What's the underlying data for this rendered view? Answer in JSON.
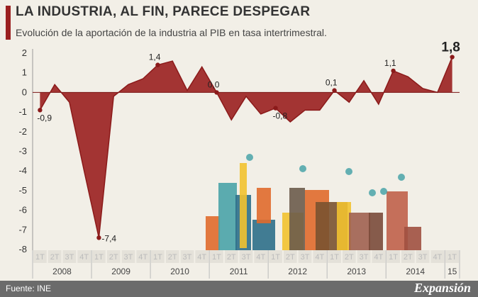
{
  "header": {
    "title": "LA INDUSTRIA, AL FIN, PARECE DESPEGAR",
    "subtitle": "Evolución de la aportación de la industria al PIB en tasa intertrimestral."
  },
  "footer": {
    "source": "Fuente: INE",
    "brand": "Expansión"
  },
  "colors": {
    "area": "#9a1f1f",
    "line": "#8b1a1a",
    "quarter_label": "#bbbbbb",
    "year_label": "#444444"
  },
  "chart_data": {
    "type": "area",
    "title": "LA INDUSTRIA, AL FIN, PARECE DESPEGAR",
    "subtitle": "Evolución de la aportación de la industria al PIB en tasa intertrimestral.",
    "ylim": [
      -8,
      2
    ],
    "yticks": [
      "2",
      "1",
      "0",
      "-1",
      "-2",
      "-3",
      "-4",
      "-5",
      "-6",
      "-7",
      "-8"
    ],
    "grid": false,
    "quarters": [
      "1T",
      "2T",
      "3T",
      "4T",
      "1T",
      "2T",
      "3T",
      "4T",
      "1T",
      "2T",
      "3T",
      "4T",
      "1T",
      "2T",
      "3T",
      "4T",
      "1T",
      "2T",
      "3T",
      "4T",
      "1T",
      "2T",
      "3T",
      "4T",
      "1T",
      "2T",
      "3T",
      "4T",
      "1T"
    ],
    "years": [
      {
        "label": "2008",
        "start": 0,
        "count": 4
      },
      {
        "label": "2009",
        "start": 4,
        "count": 4
      },
      {
        "label": "2010",
        "start": 8,
        "count": 4
      },
      {
        "label": "2011",
        "start": 12,
        "count": 4
      },
      {
        "label": "2012",
        "start": 16,
        "count": 4
      },
      {
        "label": "2013",
        "start": 20,
        "count": 4
      },
      {
        "label": "2014",
        "start": 24,
        "count": 4
      },
      {
        "label": "15",
        "start": 28,
        "count": 1
      }
    ],
    "values": [
      -0.9,
      0.4,
      -0.5,
      -4.0,
      -7.4,
      -0.2,
      0.4,
      0.7,
      1.4,
      1.6,
      0.1,
      1.3,
      0.0,
      -1.4,
      -0.2,
      -1.1,
      -0.8,
      -1.5,
      -0.9,
      -0.9,
      0.1,
      -0.5,
      0.6,
      -0.6,
      1.1,
      0.8,
      0.2,
      0.0,
      1.8
    ],
    "points": [
      {
        "index": 0,
        "label": "-0,9"
      },
      {
        "index": 4,
        "label": "-7,4"
      },
      {
        "index": 8,
        "label": "1,4"
      },
      {
        "index": 12,
        "label": "0,0"
      },
      {
        "index": 16,
        "label": "-0,8"
      },
      {
        "index": 20,
        "label": "0,1"
      },
      {
        "index": 24,
        "label": "1,1"
      },
      {
        "index": 28,
        "label": "1,8"
      }
    ]
  }
}
